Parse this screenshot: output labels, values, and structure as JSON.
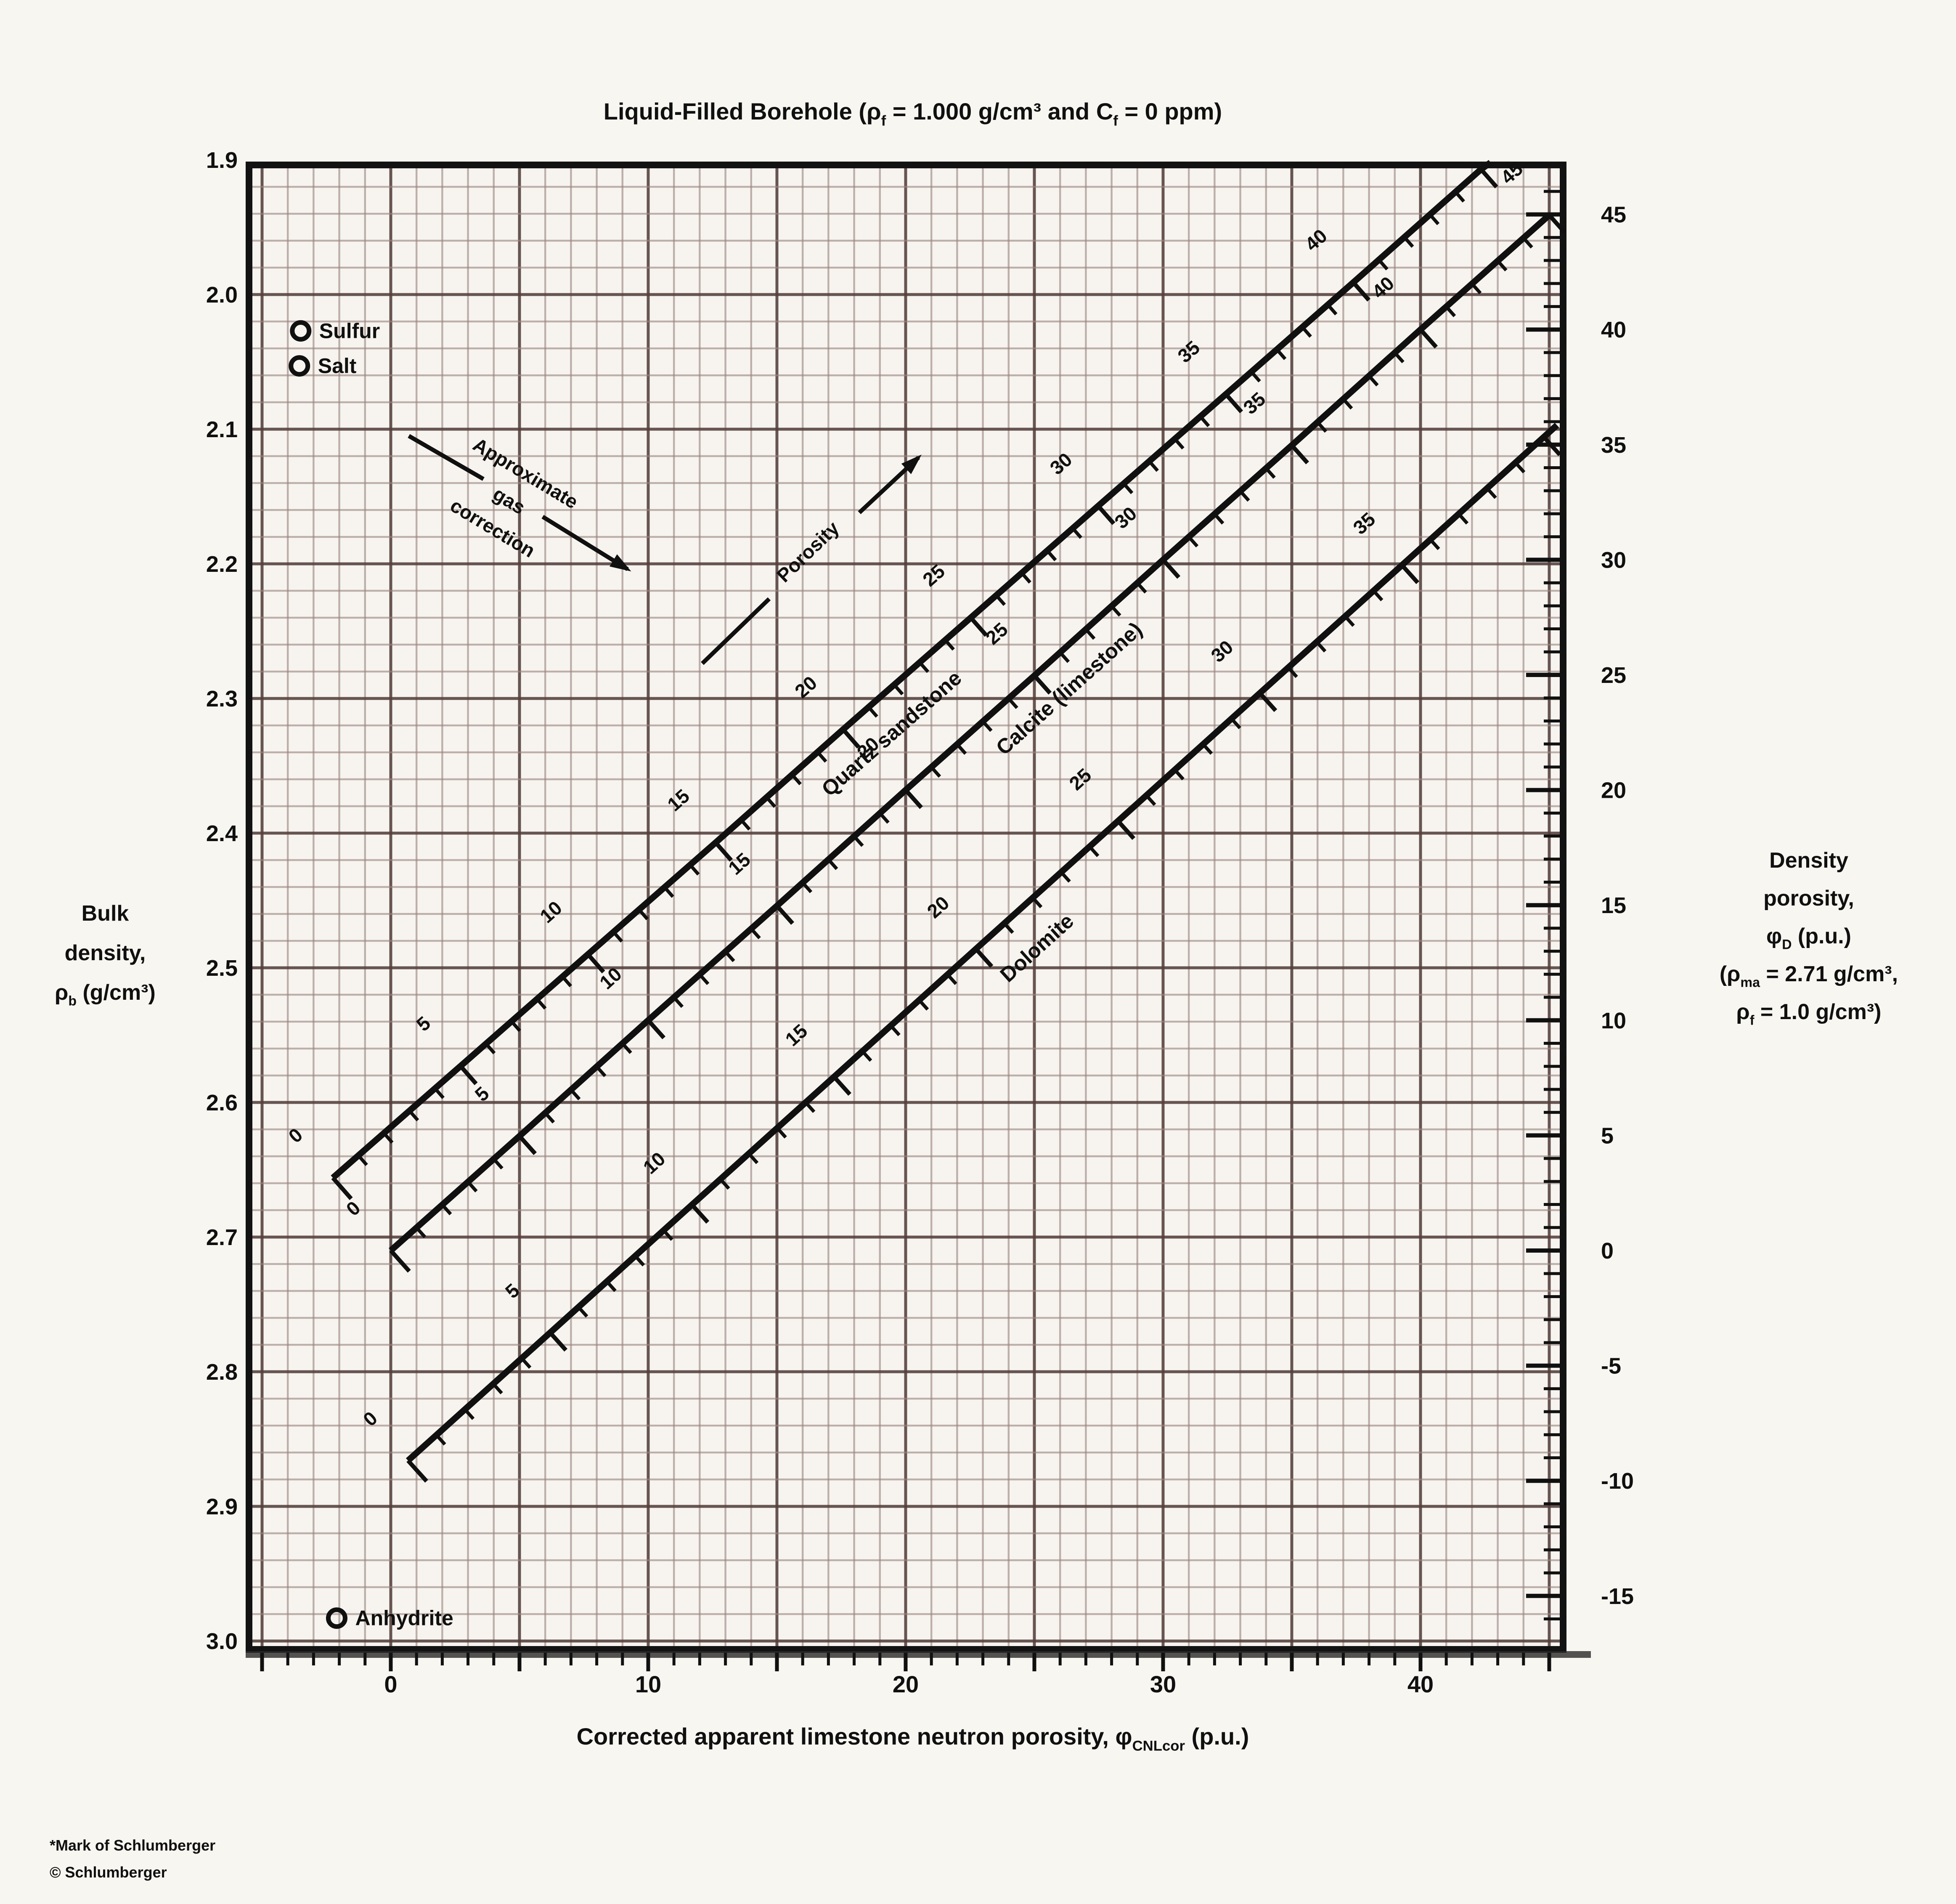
{
  "page": {
    "footnotes": [
      "*Mark of Schlumberger",
      "© Schlumberger"
    ]
  },
  "chart_data": {
    "type": "line",
    "title": "Liquid-Filled Borehole (ρ_{f} = 1.000 g/cm³ and C_{f} = 0 ppm)",
    "x_axis": {
      "title": "Corrected apparent limestone neutron porosity, φ_{CNLcor} (p.u.)",
      "range": [
        -5.5,
        45.6
      ],
      "labeled_ticks": [
        0,
        10,
        20,
        30,
        40
      ],
      "minor_tick_step": 1
    },
    "y_axis_left": {
      "title_lines": [
        "Bulk",
        "density,",
        "ρ_{b} (g/cm³)"
      ],
      "range": [
        1.9,
        3.0
      ],
      "tick_labels": [
        "1.9",
        "2.0",
        "2.1",
        "2.2",
        "2.3",
        "2.4",
        "2.5",
        "2.6",
        "2.7",
        "2.8",
        "2.9",
        "3.0"
      ],
      "tick_step": 0.1
    },
    "y_axis_right": {
      "title_lines": [
        "Density",
        "porosity,",
        "φ_{D} (p.u.)",
        "(ρ_{ma} = 2.71 g/cm³,",
        "ρ_{f} = 1.0 g/cm³)"
      ],
      "labeled_ticks": [
        45,
        40,
        35,
        30,
        25,
        20,
        15,
        10,
        5,
        0,
        -5,
        -10,
        -15
      ],
      "minor_tick_step": 1
    },
    "grid": {
      "x_minor": 1,
      "x_major": 5,
      "y_minor": 0.02,
      "y_major": 0.1,
      "on": true
    },
    "series": [
      {
        "name": "Quartz sandstone",
        "porosity": [
          0,
          5,
          10,
          15,
          20,
          25,
          30,
          35,
          40,
          45
        ],
        "points": [
          [
            -2.25,
            2.656
          ],
          [
            2.71,
            2.573
          ],
          [
            7.66,
            2.49
          ],
          [
            12.62,
            2.407
          ],
          [
            17.57,
            2.323
          ],
          [
            22.53,
            2.24
          ],
          [
            27.48,
            2.157
          ],
          [
            32.44,
            2.074
          ],
          [
            37.39,
            1.991
          ],
          [
            42.35,
            1.907
          ]
        ],
        "extend_to": [
          42.72,
          1.902
        ],
        "label_values": [
          0,
          5,
          10,
          15,
          20,
          25,
          30,
          35,
          40
        ],
        "minor_tick_max": 45,
        "label": {
          "text": "Quartz sandstone",
          "phi": 21,
          "offset": 100
        }
      },
      {
        "name": "Calcite (limestone)",
        "porosity": [
          0,
          5,
          10,
          15,
          20,
          25,
          30,
          35,
          40,
          45
        ],
        "points": [
          [
            0,
            2.71
          ],
          [
            5,
            2.625
          ],
          [
            10,
            2.539
          ],
          [
            15,
            2.454
          ],
          [
            20,
            2.368
          ],
          [
            25,
            2.283
          ],
          [
            30,
            2.197
          ],
          [
            35,
            2.112
          ],
          [
            40,
            2.026
          ],
          [
            45,
            1.941
          ]
        ],
        "label_values": [
          0,
          5,
          10,
          15,
          20,
          25,
          30,
          35,
          40,
          45
        ],
        "minor_tick_max": 45,
        "label": {
          "text": "Calcite (limestone)",
          "phi": 25.5,
          "offset": 95
        }
      },
      {
        "name": "Dolomite",
        "porosity": [
          0,
          5,
          10,
          15,
          20,
          25,
          30,
          35
        ],
        "points": [
          [
            0.67,
            2.866
          ],
          [
            6.19,
            2.771
          ],
          [
            11.7,
            2.676
          ],
          [
            17.22,
            2.581
          ],
          [
            22.73,
            2.486
          ],
          [
            28.25,
            2.391
          ],
          [
            33.76,
            2.296
          ],
          [
            39.28,
            2.201
          ]
        ],
        "extend_to": [
          45.3,
          2.097
        ],
        "label_values": [
          0,
          5,
          10,
          15,
          20,
          25,
          30,
          35
        ],
        "minor_tick_max": 40,
        "label": {
          "text": "Dolomite",
          "phi": 21.2,
          "offset": 112
        }
      }
    ],
    "reference_points": [
      {
        "label": "Sulfur",
        "x": -3.5,
        "y": 2.027
      },
      {
        "label": "Salt",
        "x": -3.55,
        "y": 2.053
      },
      {
        "label": "Anhydrite",
        "x": -2.1,
        "y": 2.983
      }
    ],
    "annotations": [
      {
        "name": "gas-correction",
        "lines": [
          "Approximate",
          "gas",
          "correction"
        ],
        "rotation": 31,
        "center": [
          4.6,
          2.153
        ],
        "arrows": [
          {
            "from": [
              0.7,
              2.105
            ],
            "to": [
              3.6,
              2.137
            ],
            "head": false
          },
          {
            "from": [
              5.9,
              2.165
            ],
            "to": [
              9.2,
              2.204
            ],
            "head": true
          }
        ]
      },
      {
        "name": "porosity",
        "lines": [
          "Porosity"
        ],
        "rotation": -44,
        "center": [
          16.2,
          2.191
        ],
        "arrows": [
          {
            "from": [
              12.1,
              2.274
            ],
            "to": [
              14.7,
              2.226
            ],
            "head": false
          },
          {
            "from": [
              18.2,
              2.162
            ],
            "to": [
              20.5,
              2.121
            ],
            "head": true
          }
        ]
      }
    ],
    "colors": {
      "paper": "#f8f6f1",
      "grid_minor": "#9b8680",
      "grid_major": "#54403c",
      "ink": "#101010",
      "frame": "#121212"
    }
  }
}
